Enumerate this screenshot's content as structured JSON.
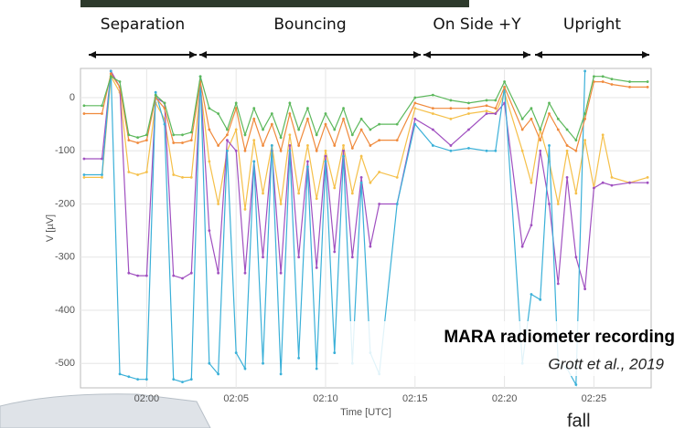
{
  "chart_data": {
    "type": "line",
    "phases": [
      "Separation",
      "Bouncing",
      "On Side +Y",
      "Upright"
    ],
    "xlabel": "Time [UTC]",
    "ylabel": "V [µV]",
    "annotation_title": "MARA radiometer recording",
    "annotation_source": "Grott et al., 2019",
    "footer_text": "fall",
    "grid": true,
    "xlim": [
      116.3,
      148.2
    ],
    "ylim": [
      -546,
      55
    ],
    "xticks": [
      {
        "value": 120,
        "label": "02:00"
      },
      {
        "value": 125,
        "label": "02:05"
      },
      {
        "value": 130,
        "label": "02:10"
      },
      {
        "value": 135,
        "label": "02:15"
      },
      {
        "value": 140,
        "label": "02:20"
      },
      {
        "value": 145,
        "label": "02:25"
      }
    ],
    "yticks": [
      0,
      -100,
      -200,
      -300,
      -400,
      -500
    ],
    "x": [
      116.5,
      117.5,
      118,
      118.5,
      119,
      119.5,
      120,
      120.5,
      121,
      121.5,
      122,
      122.5,
      123,
      123.5,
      124,
      124.5,
      125,
      125.5,
      126,
      126.5,
      127,
      127.5,
      128,
      128.5,
      129,
      129.5,
      130,
      130.5,
      131,
      131.5,
      132,
      132.5,
      133,
      134,
      135,
      136,
      137,
      138,
      139,
      139.5,
      140,
      141,
      141.5,
      142,
      142.5,
      143,
      143.5,
      144,
      144.5,
      145,
      145.5,
      146,
      147,
      148
    ],
    "series": [
      {
        "color": "#f5c04a",
        "values": [
          -150,
          -150,
          40,
          10,
          -140,
          -145,
          -140,
          -10,
          -40,
          -145,
          -150,
          -150,
          20,
          -120,
          -200,
          -100,
          -60,
          -210,
          -80,
          -180,
          -90,
          -200,
          -70,
          -180,
          -90,
          -190,
          -100,
          -170,
          -90,
          -180,
          -110,
          -160,
          -140,
          -150,
          -20,
          -30,
          -40,
          -30,
          -25,
          -30,
          10,
          -100,
          -160,
          -60,
          -120,
          -200,
          -100,
          -180,
          -80,
          -170,
          -70,
          -150,
          -160,
          -150
        ]
      },
      {
        "color": "#a050c0",
        "values": [
          -115,
          -115,
          50,
          20,
          -330,
          -335,
          -335,
          0,
          -10,
          -335,
          -340,
          -330,
          30,
          -250,
          -330,
          -80,
          -100,
          -330,
          -120,
          -300,
          -100,
          -330,
          -90,
          -300,
          -120,
          -320,
          -110,
          -290,
          -100,
          -300,
          -150,
          -280,
          -200,
          -200,
          -40,
          -60,
          -90,
          -60,
          -30,
          -30,
          -10,
          -280,
          -240,
          -100,
          -200,
          -350,
          -150,
          -300,
          -360,
          -170,
          -160,
          -165,
          -160,
          -160
        ]
      },
      {
        "color": "#3ab0d8",
        "values": [
          -145,
          -145,
          50,
          -520,
          -525,
          -530,
          -530,
          10,
          -50,
          -530,
          -535,
          -530,
          40,
          -500,
          -520,
          -100,
          -480,
          -510,
          -120,
          -500,
          -90,
          -520,
          -100,
          -490,
          -130,
          -510,
          -120,
          -480,
          -110,
          -500,
          -160,
          -480,
          -520,
          -200,
          -50,
          -90,
          -100,
          -95,
          -100,
          -100,
          20,
          -500,
          -370,
          -380,
          -90,
          -500,
          -510,
          -540,
          50,
          null,
          null,
          null,
          null,
          null
        ]
      },
      {
        "color": "#f08a3c",
        "values": [
          -30,
          -30,
          45,
          20,
          -80,
          -85,
          -80,
          0,
          -20,
          -85,
          -85,
          -80,
          30,
          -60,
          -90,
          -70,
          -20,
          -100,
          -40,
          -90,
          -50,
          -100,
          -30,
          -90,
          -40,
          -100,
          -50,
          -90,
          -40,
          -95,
          -60,
          -90,
          -80,
          -80,
          -10,
          -20,
          -20,
          -20,
          -15,
          -20,
          20,
          -60,
          -40,
          -80,
          -30,
          -60,
          -90,
          -100,
          -40,
          30,
          30,
          25,
          20,
          20
        ]
      },
      {
        "color": "#5cb85c",
        "values": [
          -15,
          -15,
          40,
          30,
          -70,
          -75,
          -70,
          5,
          -10,
          -70,
          -70,
          -65,
          40,
          -20,
          -30,
          -60,
          -10,
          -70,
          -20,
          -60,
          -30,
          -75,
          -10,
          -60,
          -20,
          -70,
          -30,
          -60,
          -20,
          -70,
          -40,
          -60,
          -50,
          -50,
          0,
          5,
          -5,
          -10,
          -5,
          -5,
          30,
          -40,
          -20,
          -60,
          -10,
          -40,
          -60,
          -80,
          -30,
          40,
          40,
          35,
          30,
          30
        ]
      }
    ]
  }
}
